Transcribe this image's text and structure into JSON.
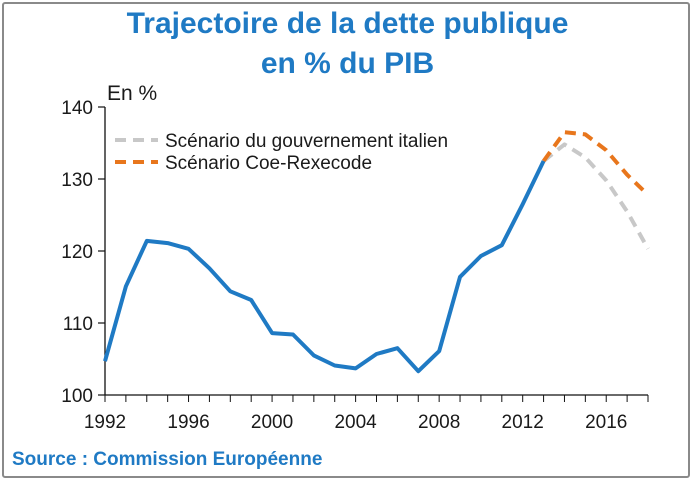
{
  "title_line1": "Trajectoire de la dette publique",
  "title_line2": "en % du PIB",
  "source": "Source : Commission Européenne",
  "colors": {
    "title": "#1f7ac4",
    "actual": "#1f7ac4",
    "gov": "#c8c8c8",
    "coe": "#e8761c"
  },
  "chart_data": {
    "type": "line",
    "ylabel": "En %",
    "xlim": [
      1992,
      2018
    ],
    "ylim": [
      100,
      140
    ],
    "x_ticks": [
      "1992",
      "1996",
      "2000",
      "2004",
      "2008",
      "2012",
      "2016"
    ],
    "y_ticks": [
      "100",
      "110",
      "120",
      "130",
      "140"
    ],
    "grid": false,
    "legend_position": "top-left",
    "series": [
      {
        "key": "actual",
        "style": "solid",
        "x": [
          1992,
          1993,
          1994,
          1995,
          1996,
          1997,
          1998,
          1999,
          2000,
          2001,
          2002,
          2003,
          2004,
          2005,
          2006,
          2007,
          2008,
          2009,
          2010,
          2011,
          2012,
          2013
        ],
        "values": [
          104.7,
          115.1,
          121.4,
          121.1,
          120.3,
          117.6,
          114.4,
          113.2,
          108.6,
          108.4,
          105.5,
          104.1,
          103.7,
          105.7,
          106.5,
          103.3,
          106.1,
          116.4,
          119.3,
          120.8,
          126.5,
          132.5
        ]
      },
      {
        "key": "gov",
        "name": "Scénario du gouvernement italien",
        "style": "dashed",
        "x": [
          2013,
          2014,
          2015,
          2016,
          2017,
          2018
        ],
        "values": [
          132.5,
          134.8,
          133.0,
          129.8,
          125.5,
          120.3
        ]
      },
      {
        "key": "coe",
        "name": "Scénario Coe-Rexecode",
        "style": "dashed",
        "x": [
          2013,
          2014,
          2015,
          2016,
          2017,
          2018
        ],
        "values": [
          132.5,
          136.5,
          136.2,
          134.0,
          130.6,
          127.8
        ]
      }
    ]
  }
}
